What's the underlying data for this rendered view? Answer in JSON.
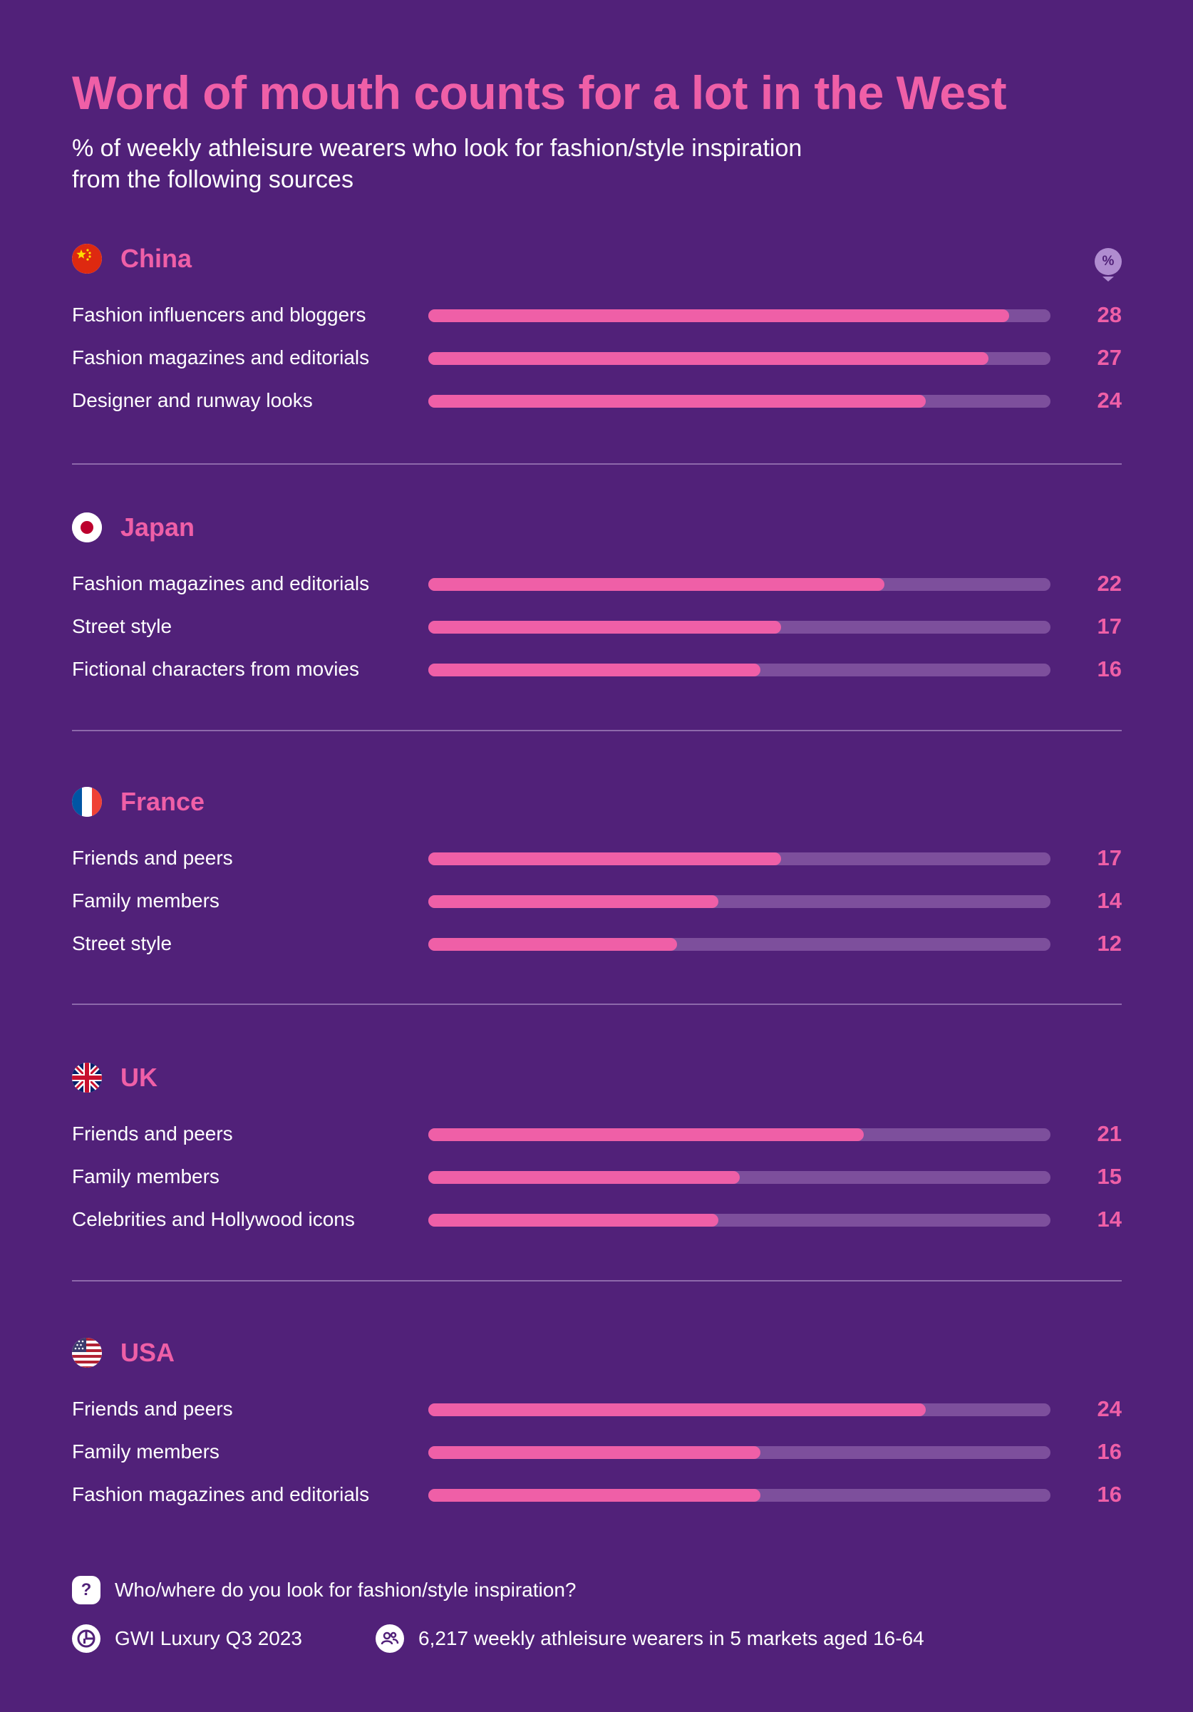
{
  "header": {
    "title": "Word of mouth counts for a lot in the West",
    "subtitle_line1": "% of weekly athleisure wearers who look for fashion/style inspiration",
    "subtitle_line2": "from the following sources",
    "unit_badge": "%"
  },
  "colors": {
    "background": "#512179",
    "accent": "#ef5fa7",
    "track": "#7d4f9c"
  },
  "chart_data": {
    "type": "bar",
    "orientation": "horizontal",
    "title": "Word of mouth counts for a lot in the West",
    "subtitle": "% of weekly athleisure wearers who look for fashion/style inspiration from the following sources",
    "unit": "%",
    "xlim": [
      0,
      30
    ],
    "groups": [
      {
        "country": "China",
        "flag": "china-flag",
        "items": [
          {
            "label": "Fashion influencers and bloggers",
            "value": 28
          },
          {
            "label": "Fashion magazines and editorials",
            "value": 27
          },
          {
            "label": "Designer and runway looks",
            "value": 24
          }
        ]
      },
      {
        "country": "Japan",
        "flag": "japan-flag",
        "items": [
          {
            "label": "Fashion magazines and editorials",
            "value": 22
          },
          {
            "label": "Street style",
            "value": 17
          },
          {
            "label": "Fictional characters from movies",
            "value": 16
          }
        ]
      },
      {
        "country": "France",
        "flag": "france-flag",
        "items": [
          {
            "label": "Friends and peers",
            "value": 17
          },
          {
            "label": "Family members",
            "value": 14
          },
          {
            "label": "Street style",
            "value": 12
          }
        ]
      },
      {
        "country": "UK",
        "flag": "uk-flag",
        "items": [
          {
            "label": "Friends and peers",
            "value": 21
          },
          {
            "label": "Family members",
            "value": 15
          },
          {
            "label": "Celebrities and Hollywood icons",
            "value": 14
          }
        ]
      },
      {
        "country": "USA",
        "flag": "usa-flag",
        "items": [
          {
            "label": "Friends and peers",
            "value": 24
          },
          {
            "label": "Family members",
            "value": 16
          },
          {
            "label": "Fashion magazines and editorials",
            "value": 16
          }
        ]
      }
    ]
  },
  "footer": {
    "question_icon": "?",
    "question": "Who/where do you look for fashion/style inspiration?",
    "source": "GWI Luxury Q3 2023",
    "sample": "6,217 weekly athleisure wearers in 5 markets aged 16-64"
  }
}
